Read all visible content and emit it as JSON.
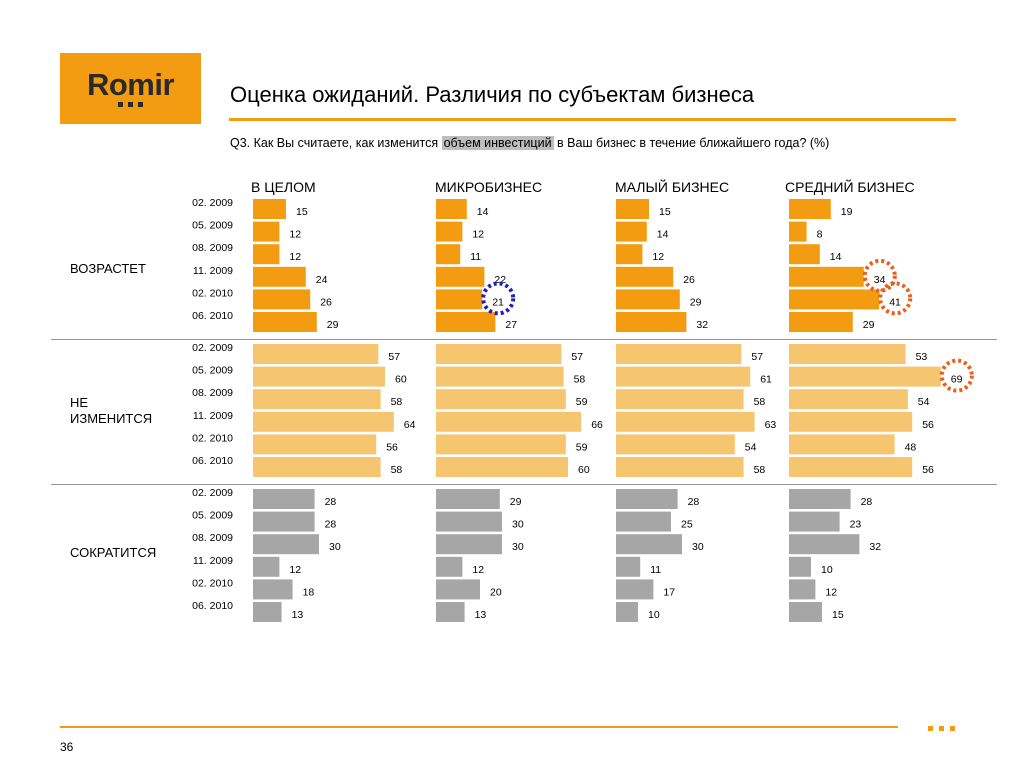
{
  "logo": {
    "text": "Romir"
  },
  "title": "Оценка ожиданий. Различия по субъектам бизнеса",
  "question": {
    "before": "Q3. Как Вы считаете, как изменится ",
    "highlight": "объем инвестиций",
    "after": " в Ваш бизнес в течение ближайшего года? (%)"
  },
  "page_number": "36",
  "colors": {
    "accent": "#f39c12",
    "increase_bar": "#f39c12",
    "nochange_bar": "#f6c570",
    "decrease_bar": "#a6a6a6",
    "marker_blue": "#1f1fb4",
    "marker_orange": "#e8601c"
  },
  "chart_data": {
    "type": "bar",
    "orientation": "horizontal",
    "columns": [
      "В ЦЕЛОМ",
      "МИКРОБИЗНЕС",
      "МАЛЫЙ БИЗНЕС",
      "СРЕДНИЙ БИЗНЕС"
    ],
    "periods": [
      "02. 2009",
      "05. 2009",
      "08. 2009",
      "11. 2009",
      "02. 2010",
      "06. 2010"
    ],
    "groups": [
      {
        "label": "ВОЗРАСТЕТ",
        "color": "#f39c12",
        "values": [
          [
            15,
            12,
            12,
            24,
            26,
            29
          ],
          [
            14,
            12,
            11,
            22,
            21,
            27
          ],
          [
            15,
            14,
            12,
            26,
            29,
            32
          ],
          [
            19,
            8,
            14,
            34,
            41,
            29
          ]
        ]
      },
      {
        "label": "НЕ ИЗМЕНИТСЯ",
        "color": "#f6c570",
        "values": [
          [
            57,
            60,
            58,
            64,
            56,
            58
          ],
          [
            57,
            58,
            59,
            66,
            59,
            60
          ],
          [
            57,
            61,
            58,
            63,
            54,
            58
          ],
          [
            53,
            69,
            54,
            56,
            48,
            56
          ]
        ]
      },
      {
        "label": "СОКРАТИТСЯ",
        "color": "#a6a6a6",
        "values": [
          [
            28,
            28,
            30,
            12,
            18,
            13
          ],
          [
            29,
            30,
            30,
            12,
            20,
            13
          ],
          [
            28,
            25,
            30,
            11,
            17,
            10
          ],
          [
            28,
            23,
            32,
            10,
            12,
            15
          ]
        ]
      }
    ],
    "highlights": [
      {
        "group": 0,
        "column": 1,
        "period": 4,
        "color": "#1f1fb4"
      },
      {
        "group": 0,
        "column": 3,
        "period": 3,
        "color": "#e8601c"
      },
      {
        "group": 0,
        "column": 3,
        "period": 4,
        "color": "#e8601c"
      },
      {
        "group": 1,
        "column": 3,
        "period": 1,
        "color": "#e8601c"
      }
    ]
  }
}
